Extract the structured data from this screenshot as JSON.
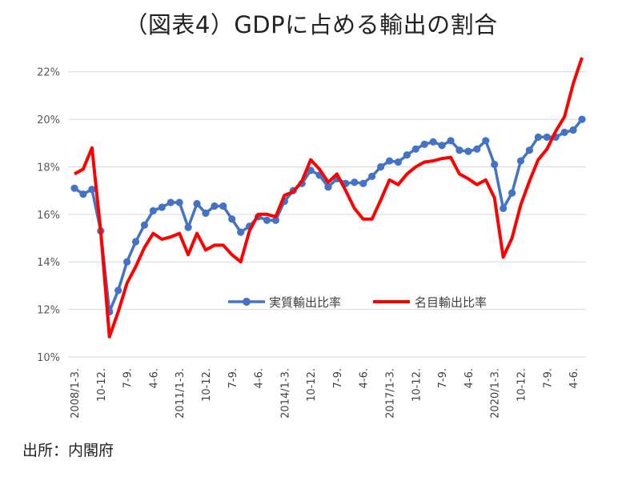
{
  "title": "（図表4）GDPに占める輸出の割合",
  "source": "出所：内閣府",
  "chart_data": {
    "type": "line",
    "title": "（図表4）GDPに占める輸出の割合",
    "xlabel": "",
    "ylabel": "",
    "ylim": [
      10,
      23
    ],
    "yticks": [
      10,
      12,
      14,
      16,
      18,
      20,
      22
    ],
    "ytick_labels": [
      "10%",
      "12%",
      "14%",
      "16%",
      "18%",
      "20%",
      "22%"
    ],
    "grid": true,
    "legend_position": "bottom-center",
    "x_tick_labels": [
      {
        "i": 0,
        "label": "2008/1-3."
      },
      {
        "i": 3,
        "label": "10-12."
      },
      {
        "i": 6,
        "label": "7-9."
      },
      {
        "i": 9,
        "label": "4-6."
      },
      {
        "i": 12,
        "label": "2011/1-3."
      },
      {
        "i": 15,
        "label": "10-12."
      },
      {
        "i": 18,
        "label": "7-9."
      },
      {
        "i": 21,
        "label": "4-6."
      },
      {
        "i": 24,
        "label": "2014/1-3."
      },
      {
        "i": 27,
        "label": "10-12."
      },
      {
        "i": 30,
        "label": "7-9."
      },
      {
        "i": 33,
        "label": "4-6."
      },
      {
        "i": 36,
        "label": "2017/1-3."
      },
      {
        "i": 39,
        "label": "10-12."
      },
      {
        "i": 42,
        "label": "7-9."
      },
      {
        "i": 45,
        "label": "4-6."
      },
      {
        "i": 48,
        "label": "2020/1-3."
      },
      {
        "i": 51,
        "label": "10-12."
      },
      {
        "i": 54,
        "label": "7-9."
      },
      {
        "i": 57,
        "label": "4-6."
      }
    ],
    "series": [
      {
        "name": "実質輸出比率",
        "color": "#4472C4",
        "marker": "circle",
        "values": [
          17.1,
          16.85,
          17.05,
          15.3,
          11.9,
          12.8,
          14.0,
          14.85,
          15.55,
          16.15,
          16.3,
          16.5,
          16.5,
          15.45,
          16.45,
          16.05,
          16.35,
          16.35,
          15.8,
          15.25,
          15.5,
          15.9,
          15.75,
          15.75,
          16.55,
          17.0,
          17.3,
          17.85,
          17.65,
          17.15,
          17.5,
          17.3,
          17.35,
          17.3,
          17.6,
          18.0,
          18.25,
          18.2,
          18.5,
          18.75,
          18.95,
          19.05,
          18.9,
          19.1,
          18.7,
          18.65,
          18.75,
          19.1,
          18.1,
          16.25,
          16.9,
          18.25,
          18.7,
          19.25,
          19.25,
          19.25,
          19.45,
          19.55,
          20.0
        ]
      },
      {
        "name": "名目輸出比率",
        "color": "#FF0000",
        "marker": "none",
        "values": [
          17.7,
          17.9,
          18.8,
          15.3,
          10.85,
          11.9,
          13.1,
          13.8,
          14.6,
          15.2,
          14.95,
          15.05,
          15.2,
          14.3,
          15.2,
          14.5,
          14.7,
          14.7,
          14.3,
          14.0,
          15.3,
          16.0,
          16.0,
          15.9,
          16.8,
          16.95,
          17.4,
          18.3,
          17.9,
          17.35,
          17.7,
          17.0,
          16.25,
          15.8,
          15.8,
          16.6,
          17.45,
          17.25,
          17.7,
          18.0,
          18.2,
          18.25,
          18.35,
          18.4,
          17.7,
          17.5,
          17.25,
          17.45,
          16.7,
          14.2,
          15.0,
          16.4,
          17.4,
          18.3,
          18.75,
          19.5,
          20.1,
          21.5,
          22.6
        ]
      }
    ]
  }
}
